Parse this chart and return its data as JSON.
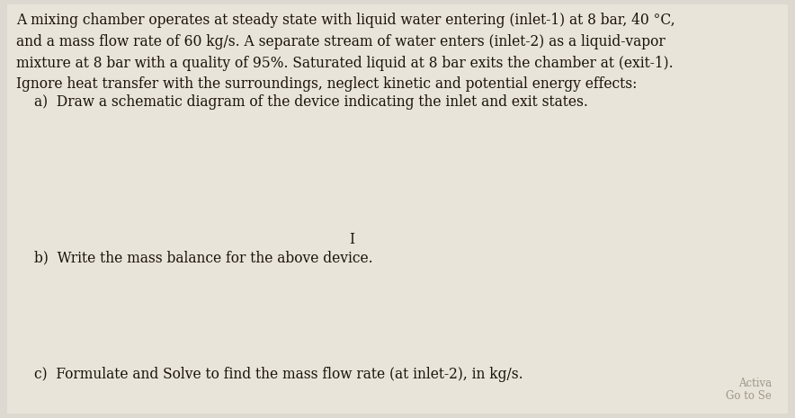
{
  "background_color": "#ddd9d0",
  "center_color": "#e8e4da",
  "text_color": "#1a1208",
  "paragraph": "A mixing chamber operates at steady state with liquid water entering (inlet-1) at 8 bar, 40 °C,\nand a mass flow rate of 60 kg/s. A separate stream of water enters (inlet-2) as a liquid-vapor\nmixture at 8 bar with a quality of 95%. Saturated liquid at 8 bar exits the chamber at (exit-1).\nIgnore heat transfer with the surroundings, neglect kinetic and potential energy effects:",
  "question_a": "a)  Draw a schematic diagram of the device indicating the inlet and exit states.",
  "question_b": "b)  Write the mass balance for the above device.",
  "question_c": "c)  Formulate and Solve to find the mass flow rate (at inlet-2), in kg/s.",
  "watermark_line1": "Activa",
  "watermark_line2": "Go to Se",
  "watermark_color": "#a09888",
  "cursor_symbol": "I",
  "para_fontsize": 11.2,
  "question_fontsize": 11.2,
  "watermark_fontsize": 8.5
}
